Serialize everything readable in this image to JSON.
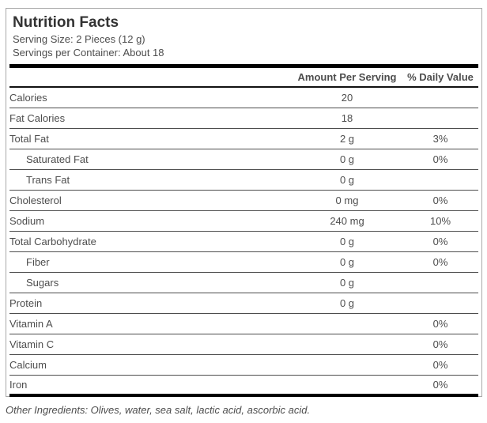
{
  "label": {
    "title": "Nutrition Facts",
    "serving_size": "Serving Size: 2 Pieces (12 g)",
    "servings_per_container": "Servings per Container: About 18"
  },
  "table": {
    "headers": {
      "amount": "Amount Per Serving",
      "daily": "% Daily Value"
    },
    "rows": [
      {
        "label": "Calories",
        "amount": "20",
        "daily": "",
        "indent": false
      },
      {
        "label": "Fat Calories",
        "amount": "18",
        "daily": "",
        "indent": false
      },
      {
        "label": "Total Fat",
        "amount": "2 g",
        "daily": "3%",
        "indent": false
      },
      {
        "label": "Saturated Fat",
        "amount": "0 g",
        "daily": "0%",
        "indent": true
      },
      {
        "label": "Trans Fat",
        "amount": "0 g",
        "daily": "",
        "indent": true
      },
      {
        "label": "Cholesterol",
        "amount": "0 mg",
        "daily": "0%",
        "indent": false
      },
      {
        "label": "Sodium",
        "amount": "240 mg",
        "daily": "10%",
        "indent": false
      },
      {
        "label": "Total Carbohydrate",
        "amount": "0 g",
        "daily": "0%",
        "indent": false
      },
      {
        "label": "Fiber",
        "amount": "0 g",
        "daily": "0%",
        "indent": true
      },
      {
        "label": "Sugars",
        "amount": "0 g",
        "daily": "",
        "indent": true
      },
      {
        "label": "Protein",
        "amount": "0 g",
        "daily": "",
        "indent": false
      },
      {
        "label": "Vitamin A",
        "amount": "",
        "daily": "0%",
        "indent": false
      },
      {
        "label": "Vitamin C",
        "amount": "",
        "daily": "0%",
        "indent": false
      },
      {
        "label": "Calcium",
        "amount": "",
        "daily": "0%",
        "indent": false
      },
      {
        "label": "Iron",
        "amount": "",
        "daily": "0%",
        "indent": false
      }
    ]
  },
  "footer": {
    "other_ingredients": "Other Ingredients: Olives, water, sea salt, lactic acid, ascorbic acid."
  },
  "colors": {
    "text": "#4d4d4d",
    "title": "#333333",
    "thick_bar": "#000000",
    "box_border": "#a9a9a9"
  }
}
